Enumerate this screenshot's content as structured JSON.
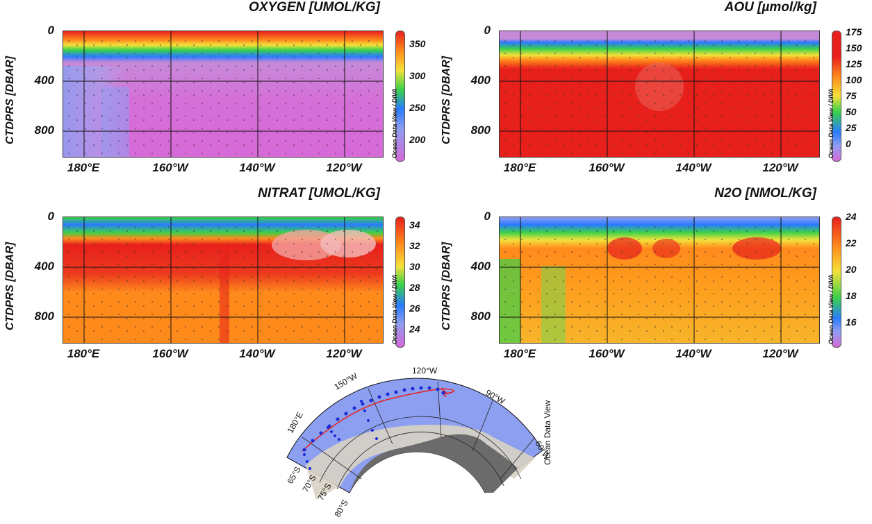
{
  "credit": "Ocean Data View / DIVA",
  "chart_data": [
    {
      "type": "heatmap",
      "title": "OXYGEN [UMOL/KG]",
      "ylabel": "CTDPRS [DBAR]",
      "x_ticks": [
        "180°E",
        "160°W",
        "140°W",
        "120°W"
      ],
      "y_ticks": [
        "0",
        "400",
        "800"
      ],
      "ylim": [
        1000,
        0
      ],
      "colorbar_ticks": [
        "350",
        "300",
        "250",
        "200"
      ],
      "colorbar_range": [
        170,
        375
      ],
      "grid": true,
      "surface_value": 360,
      "deep_value": 200
    },
    {
      "type": "heatmap",
      "title": "AOU [µmol/kg]",
      "ylabel": "CTDPRS [DBAR]",
      "x_ticks": [
        "180°E",
        "160°W",
        "140°W",
        "120°W"
      ],
      "y_ticks": [
        "0",
        "400",
        "800"
      ],
      "ylim": [
        1000,
        0
      ],
      "colorbar_ticks": [
        "175",
        "150",
        "125",
        "100",
        "75",
        "50",
        "25",
        "0"
      ],
      "colorbar_range": [
        0,
        175
      ],
      "grid": true,
      "surface_value": 0,
      "deep_value": 155
    },
    {
      "type": "heatmap",
      "title": "NITRAT [UMOL/KG]",
      "ylabel": "CTDPRS [DBAR]",
      "x_ticks": [
        "180°E",
        "160°W",
        "140°W",
        "120°W"
      ],
      "y_ticks": [
        "0",
        "400",
        "800"
      ],
      "ylim": [
        1000,
        0
      ],
      "colorbar_ticks": [
        "34",
        "32",
        "30",
        "28",
        "26",
        "24"
      ],
      "colorbar_range": [
        23,
        35
      ],
      "grid": true,
      "surface_value": 27,
      "deep_value": 32
    },
    {
      "type": "heatmap",
      "title": "N2O [NMOL/KG]",
      "ylabel": "CTDPRS [DBAR]",
      "x_ticks": [
        "180°E",
        "160°W",
        "140°W",
        "120°W"
      ],
      "y_ticks": [
        "0",
        "400",
        "800"
      ],
      "ylim": [
        1000,
        0
      ],
      "colorbar_ticks": [
        "24",
        "22",
        "20",
        "18",
        "16"
      ],
      "colorbar_range": [
        15,
        24
      ],
      "grid": true,
      "surface_value": 17,
      "deep_value": 21
    }
  ],
  "map": {
    "lon_labels": [
      "180°E",
      "150°W",
      "120°W",
      "90°W",
      "60°W"
    ],
    "lat_labels": [
      "65°S",
      "70°S",
      "75°S",
      "80°S"
    ],
    "credit": "Ocean Data View"
  },
  "colors": {
    "jet_magenta": "#d65fd9",
    "jet_blue": "#3b5bff",
    "jet_green": "#39d14a",
    "jet_yellow": "#f4e13a",
    "jet_orange": "#ff8a1c",
    "jet_red": "#e8201c",
    "ocean": "#8c9ff0",
    "ice": "#d8d2c4",
    "land": "#6b6b6b"
  }
}
